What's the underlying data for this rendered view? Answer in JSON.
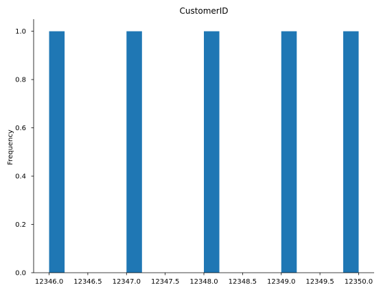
{
  "chart_data": {
    "type": "bar",
    "title": "CustomerID",
    "xlabel": "",
    "ylabel": "Frequency",
    "xlim": [
      12345.8,
      12350.2
    ],
    "ylim": [
      0,
      1.05
    ],
    "bins": [
      {
        "x0": 12346.0,
        "x1": 12346.2,
        "value": 1.0
      },
      {
        "x0": 12347.0,
        "x1": 12347.2,
        "value": 1.0
      },
      {
        "x0": 12348.0,
        "x1": 12348.2,
        "value": 1.0
      },
      {
        "x0": 12349.0,
        "x1": 12349.2,
        "value": 1.0
      },
      {
        "x0": 12349.8,
        "x1": 12350.0,
        "value": 1.0
      }
    ],
    "x_ticks": [
      {
        "value": 12346.0,
        "label": "12346.0"
      },
      {
        "value": 12346.5,
        "label": "12346.5"
      },
      {
        "value": 12347.0,
        "label": "12347.0"
      },
      {
        "value": 12347.5,
        "label": "12347.5"
      },
      {
        "value": 12348.0,
        "label": "12348.0"
      },
      {
        "value": 12348.5,
        "label": "12348.5"
      },
      {
        "value": 12349.0,
        "label": "12349.0"
      },
      {
        "value": 12349.5,
        "label": "12349.5"
      },
      {
        "value": 12350.0,
        "label": "12350.0"
      }
    ],
    "y_ticks": [
      {
        "value": 0.0,
        "label": "0.0"
      },
      {
        "value": 0.2,
        "label": "0.2"
      },
      {
        "value": 0.4,
        "label": "0.4"
      },
      {
        "value": 0.6,
        "label": "0.6"
      },
      {
        "value": 0.8,
        "label": "0.8"
      },
      {
        "value": 1.0,
        "label": "1.0"
      }
    ],
    "grid": false,
    "colors": {
      "bar": "#1f77b4",
      "axis": "#000000"
    }
  }
}
